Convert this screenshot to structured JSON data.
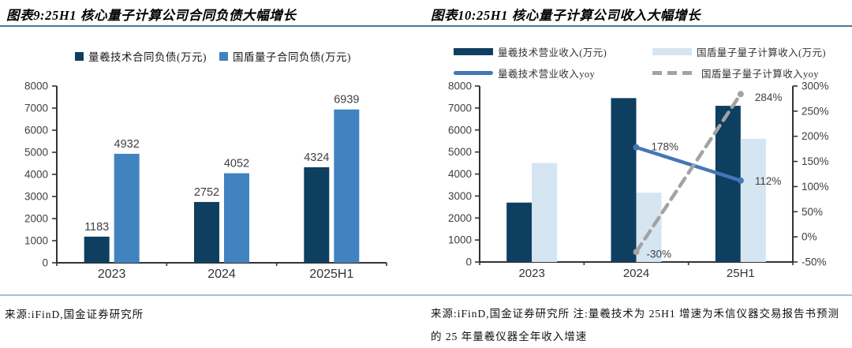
{
  "figures": [
    {
      "label": "图表9",
      "title": "图表9:25H1 核心量子计算公司合同负债大幅增长",
      "source": "来源:iFinD,国金证券研究所"
    },
    {
      "label": "图表10",
      "title": "图表10:25H1 核心量子计算公司收入大幅增长",
      "source": "来源:iFinD,国金证券研究所 注:量羲技术为 25H1 增速为禾信仪器交易报告书预测的 25 年量羲仪器全年收入增速"
    }
  ],
  "chart_data": [
    {
      "type": "bar",
      "title": "25H1 核心量子计算公司合同负债大幅增长",
      "categories": [
        "2023",
        "2024",
        "2025H1"
      ],
      "series": [
        {
          "name": "量羲技术合同负债(万元)",
          "color": "#0e3f60",
          "values": [
            1183,
            2752,
            4324
          ]
        },
        {
          "name": "国盾量子合同负债(万元)",
          "color": "#4182c0",
          "values": [
            4932,
            4052,
            6939
          ]
        }
      ],
      "ylim": [
        0,
        8000
      ],
      "ytick_step": 1000,
      "value_labels": true,
      "grid": false,
      "legend_position": "top"
    },
    {
      "type": "bar+line",
      "title": "25H1 核心量子计算公司收入大幅增长",
      "categories": [
        "2023",
        "2024",
        "25H1"
      ],
      "bar_series": [
        {
          "name": "量羲技术营业收入(万元)",
          "color": "#0e3f60",
          "axis": "left",
          "values": [
            2700,
            7450,
            7100
          ]
        },
        {
          "name": "国盾量子量子计算收入(万元)",
          "color": "#d6e5f2",
          "axis": "left",
          "values": [
            4500,
            3150,
            5600
          ]
        }
      ],
      "line_series": [
        {
          "name": "量羲技术营业收入yoy",
          "color": "#4477b6",
          "style": "solid",
          "axis": "right",
          "points": [
            {
              "category": "2024",
              "value": 178,
              "label": "178%"
            },
            {
              "category": "25H1",
              "value": 112,
              "label": "112%"
            }
          ]
        },
        {
          "name": "国盾量子量子计算收入yoy",
          "color": "#a3a3a3",
          "style": "dashed",
          "axis": "right",
          "points": [
            {
              "category": "2024",
              "value": -30,
              "label": "-30%"
            },
            {
              "category": "25H1",
              "value": 284,
              "label": "284%"
            }
          ]
        }
      ],
      "ylim": [
        0,
        8000
      ],
      "ytick_step": 1000,
      "y2lim": [
        -50,
        300
      ],
      "y2tick_step": 50,
      "y2suffix": "%",
      "grid": false,
      "legend_position": "top"
    }
  ]
}
